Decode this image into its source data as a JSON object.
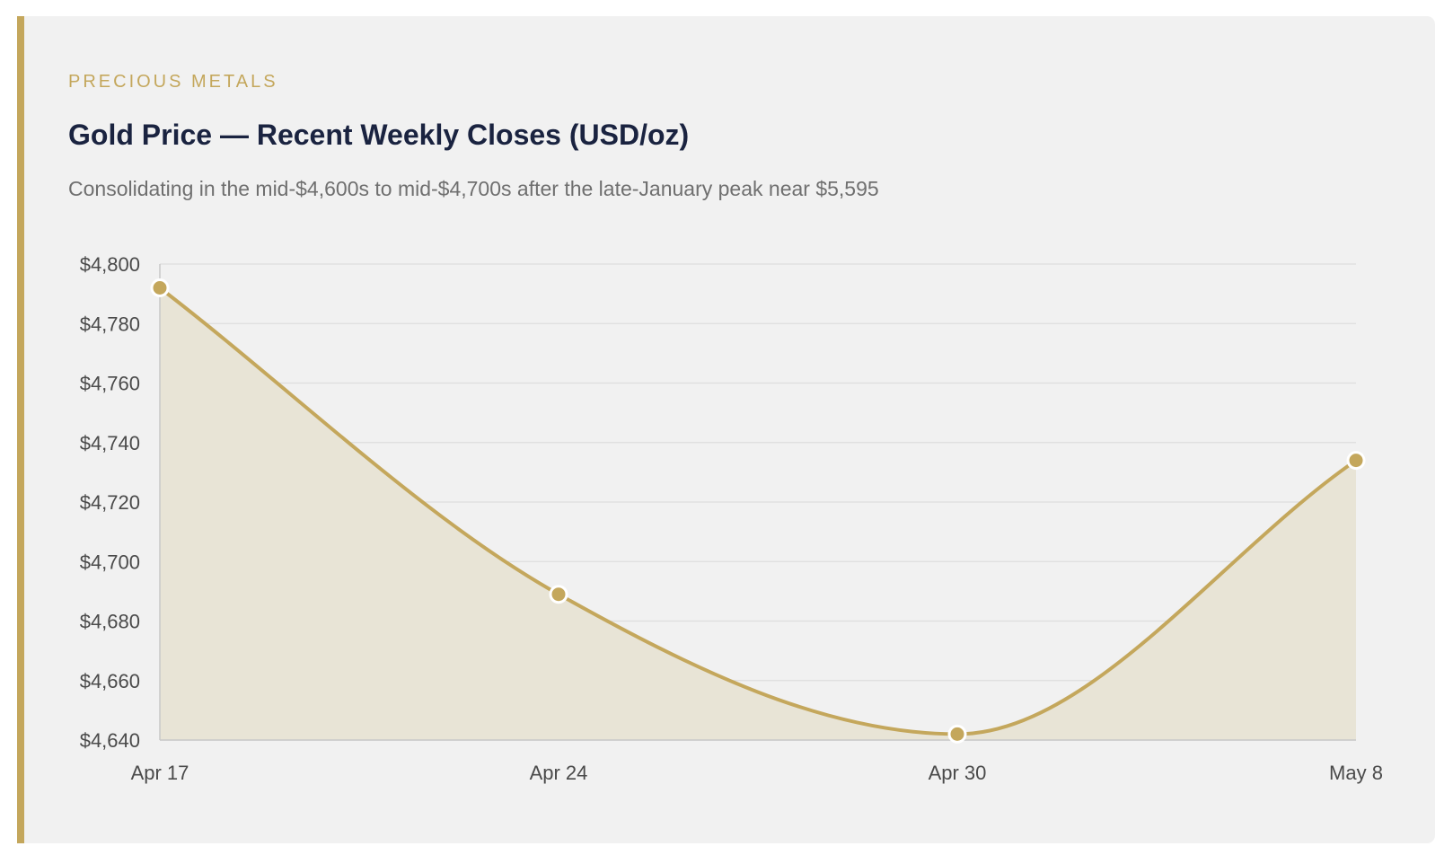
{
  "card": {
    "accent_color": "#c4a75c",
    "eyebrow": "PRECIOUS METALS",
    "title": "Gold Price — Recent Weekly Closes (USD/oz)",
    "subtitle": "Consolidating in the mid-$4,600s to mid-$4,700s after the late-January peak near $5,595"
  },
  "chart_data": {
    "type": "area",
    "categories": [
      "Apr 17",
      "Apr 24",
      "Apr 30",
      "May 8"
    ],
    "series": [
      {
        "values": [
          4792,
          4689,
          4642,
          4734
        ]
      }
    ],
    "ylim": [
      4640,
      4800
    ],
    "yticks": [
      4640,
      4660,
      4680,
      4700,
      4720,
      4740,
      4760,
      4780,
      4800
    ],
    "ytick_labels": [
      "$4,640",
      "$4,660",
      "$4,680",
      "$4,700",
      "$4,720",
      "$4,740",
      "$4,760",
      "$4,780",
      "$4,800"
    ],
    "grid": true,
    "smooth": true,
    "line_color": "#c4a75c",
    "fill_color": "#e8e4d6",
    "grid_color": "#dedede",
    "axis_color": "#c8c8c8"
  }
}
